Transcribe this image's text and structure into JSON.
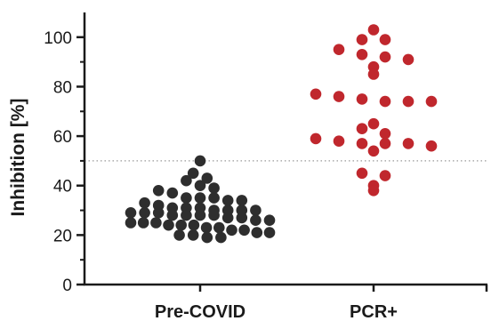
{
  "chart_data": {
    "type": "scatter",
    "title": "",
    "xlabel": "",
    "ylabel": "Inhibition [%]",
    "categories": [
      "Pre-COVID",
      "PCR+"
    ],
    "ylim": [
      0,
      110
    ],
    "yticks": [
      0,
      20,
      40,
      60,
      80,
      100
    ],
    "threshold": 50,
    "colors": {
      "Pre-COVID": "#2e2e2e",
      "PCR+": "#c0272d",
      "threshold": "#9a9a9a",
      "axis": "#1a1a1a"
    },
    "series": [
      {
        "category": "Pre-COVID",
        "values": [
          50,
          45,
          43,
          42,
          40,
          39,
          38,
          37,
          35,
          35,
          35,
          34,
          34,
          33,
          32,
          31,
          31,
          31,
          30,
          30,
          30,
          30,
          29,
          29,
          29,
          28,
          28,
          28,
          28,
          27,
          27,
          26,
          26,
          25,
          25,
          25,
          24,
          24,
          24,
          23,
          23,
          22,
          22,
          21,
          21,
          20,
          20,
          19,
          19
        ]
      },
      {
        "category": "PCR+",
        "values": [
          103,
          99,
          99,
          95,
          93,
          92,
          91,
          88,
          85,
          77,
          76,
          75,
          74,
          74,
          74,
          65,
          63,
          61,
          59,
          58,
          57,
          57,
          57,
          56,
          54,
          45,
          44,
          40,
          38
        ]
      }
    ]
  }
}
